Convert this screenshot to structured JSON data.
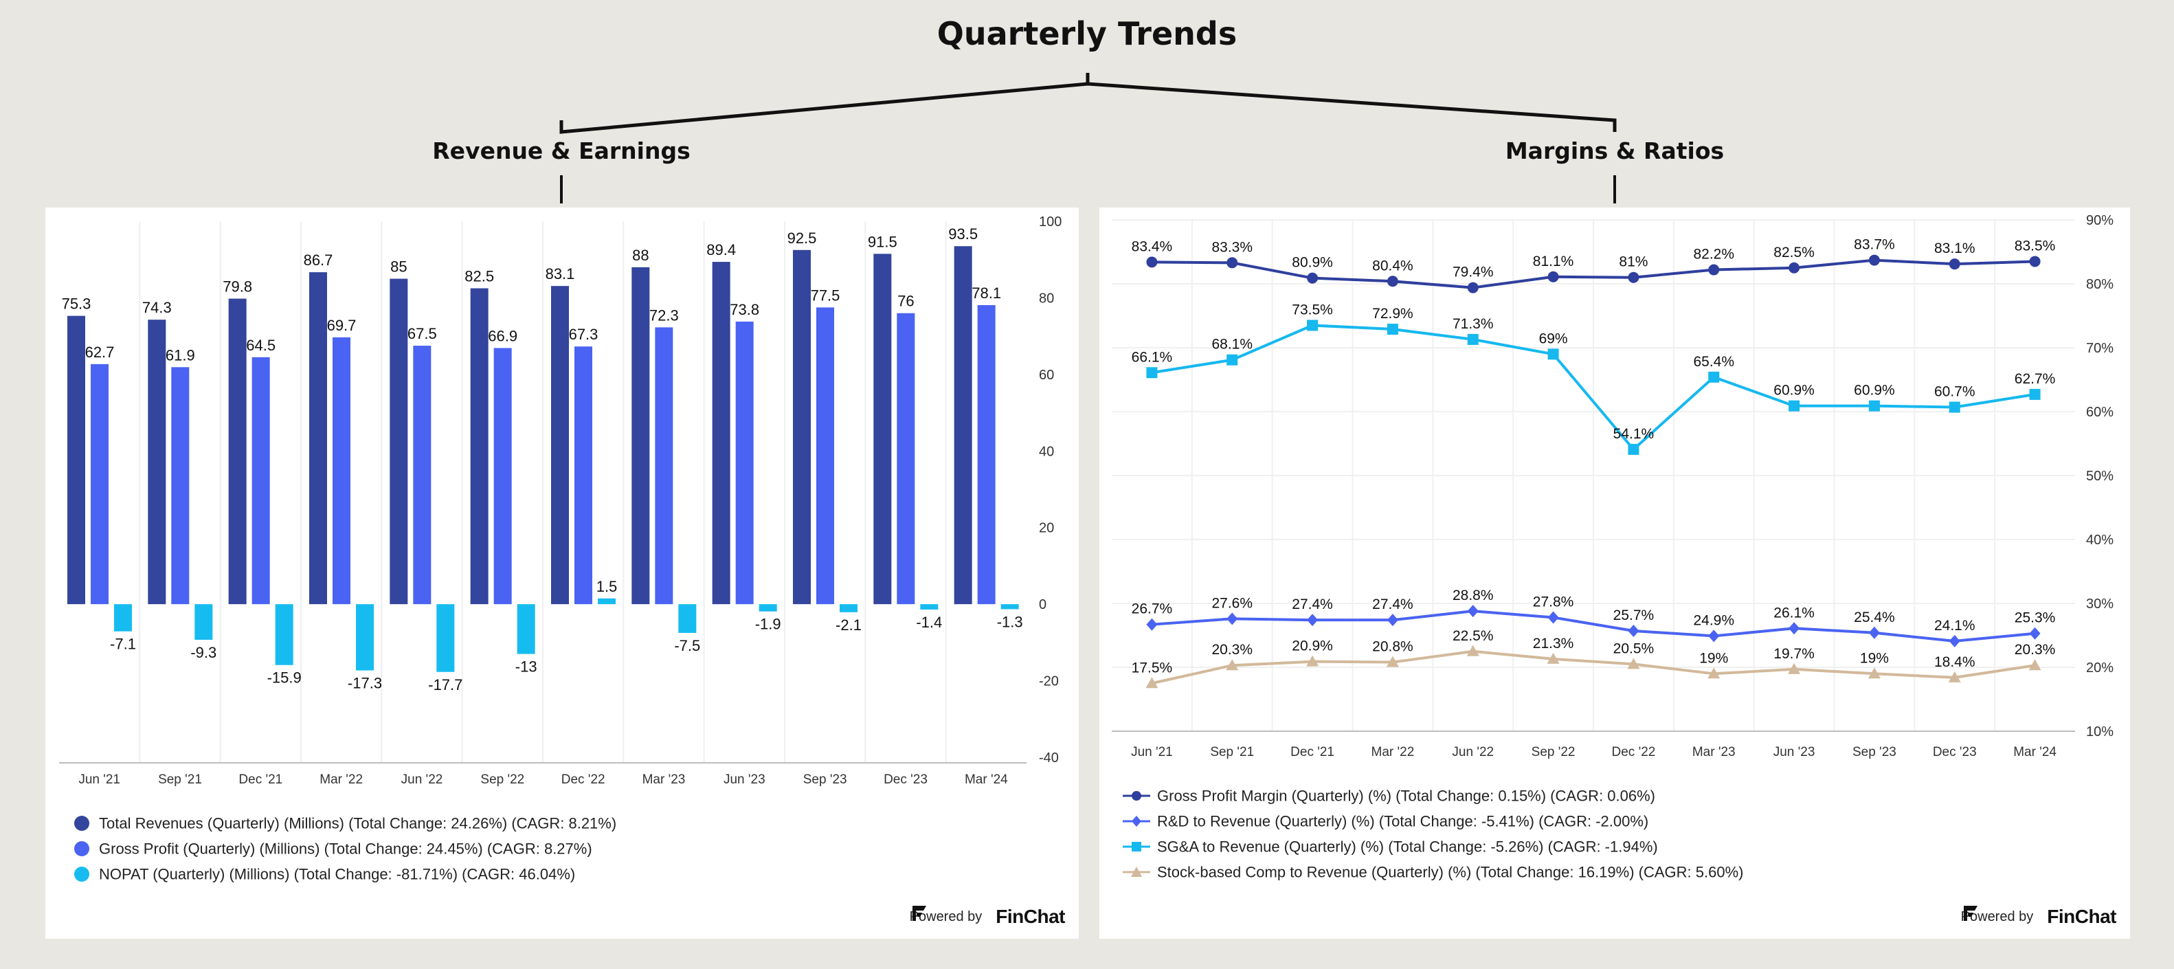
{
  "title": "Quarterly Trends",
  "left_panel": {
    "title": "Revenue & Earnings"
  },
  "right_panel": {
    "title": "Margins & Ratios"
  },
  "powered_by": "Powered by",
  "brand": "FinChat",
  "colors": {
    "total_revenues": "#33459c",
    "gross_profit": "#4a63f2",
    "nopat": "#16bcf0",
    "gross_margin": "#2f3f9e",
    "rd_revenue": "#4a63f2",
    "sga_revenue": "#16b8ef",
    "sbc_revenue": "#d2b99b"
  },
  "chart_data": [
    {
      "type": "bar",
      "categories": [
        "Jun '21",
        "Sep '21",
        "Dec '21",
        "Mar '22",
        "Jun '22",
        "Sep '22",
        "Dec '22",
        "Mar '23",
        "Jun '23",
        "Sep '23",
        "Dec '23",
        "Mar '24"
      ],
      "ylim": [
        -40,
        100
      ],
      "yticks": [
        100,
        80,
        60,
        40,
        20,
        0,
        -20,
        -40
      ],
      "series": [
        {
          "name": "Total Revenues (Quarterly) (Millions) (Total Change: 24.26%) (CAGR: 8.21%)",
          "values": [
            75.3,
            74.3,
            79.8,
            86.7,
            85,
            82.5,
            83.1,
            88,
            89.4,
            92.5,
            91.5,
            93.5
          ]
        },
        {
          "name": "Gross Profit (Quarterly) (Millions) (Total Change: 24.45%) (CAGR: 8.27%)",
          "values": [
            62.7,
            61.9,
            64.5,
            69.7,
            67.5,
            66.9,
            67.3,
            72.3,
            73.8,
            77.5,
            76,
            78.1
          ]
        },
        {
          "name": "NOPAT (Quarterly) (Millions) (Total Change: -81.71%) (CAGR: 46.04%)",
          "values": [
            -7.1,
            -9.3,
            -15.9,
            -17.3,
            -17.7,
            -13,
            1.5,
            -7.5,
            -1.9,
            -2.1,
            -1.4,
            -1.3
          ]
        }
      ]
    },
    {
      "type": "line",
      "categories": [
        "Jun '21",
        "Sep '21",
        "Dec '21",
        "Mar '22",
        "Jun '22",
        "Sep '22",
        "Dec '22",
        "Mar '23",
        "Jun '23",
        "Sep '23",
        "Dec '23",
        "Mar '24"
      ],
      "ylim": [
        10,
        90
      ],
      "yticks": [
        90,
        80,
        70,
        60,
        50,
        40,
        30,
        20,
        10
      ],
      "ytick_suffix": "%",
      "series": [
        {
          "name": "Gross Profit Margin (Quarterly) (%) (Total Change: 0.15%) (CAGR: 0.06%)",
          "marker": "circle",
          "values": [
            83.4,
            83.3,
            80.9,
            80.4,
            79.4,
            81.1,
            81,
            82.2,
            82.5,
            83.7,
            83.1,
            83.5
          ]
        },
        {
          "name": "R&D to Revenue (Quarterly) (%) (Total Change: -5.41%) (CAGR: -2.00%)",
          "marker": "diamond",
          "values": [
            26.7,
            27.6,
            27.4,
            27.4,
            28.8,
            27.8,
            25.7,
            24.9,
            26.1,
            25.4,
            24.1,
            25.3
          ]
        },
        {
          "name": "SG&A to Revenue (Quarterly) (%) (Total Change: -5.26%) (CAGR: -1.94%)",
          "marker": "square",
          "values": [
            66.1,
            68.1,
            73.5,
            72.9,
            71.3,
            69,
            54.1,
            65.4,
            60.9,
            60.9,
            60.7,
            62.7
          ]
        },
        {
          "name": "Stock-based Comp to Revenue (Quarterly) (%) (Total Change: 16.19%) (CAGR: 5.60%)",
          "marker": "triangle",
          "values": [
            17.5,
            20.3,
            20.9,
            20.8,
            22.5,
            21.3,
            20.5,
            19,
            19.7,
            19,
            18.4,
            20.3
          ]
        }
      ]
    }
  ]
}
